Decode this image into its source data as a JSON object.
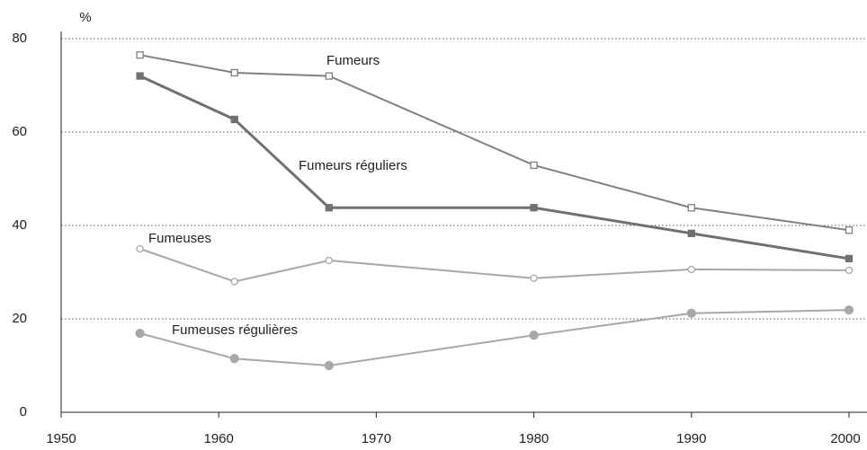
{
  "chart_data": {
    "type": "line",
    "y_unit": "%",
    "x": [
      1955,
      1961,
      1967,
      1980,
      1990,
      2000
    ],
    "series": [
      {
        "name": "Fumeurs",
        "color": "#808080",
        "marker": "square-open",
        "values": [
          76.5,
          72.7,
          72,
          52.9,
          43.8,
          39
        ]
      },
      {
        "name": "Fumeurs réguliers",
        "color": "#707070",
        "marker": "square-filled",
        "values": [
          72,
          62.7,
          43.8,
          43.8,
          38.3,
          32.9
        ]
      },
      {
        "name": "Fumeuses",
        "color": "#a8a8a8",
        "marker": "circle-open",
        "values": [
          35,
          28,
          32.5,
          28.7,
          30.6,
          30.4
        ]
      },
      {
        "name": "Fumeuses régulières",
        "color": "#a8a8a8",
        "marker": "circle-filled",
        "values": [
          16.9,
          11.5,
          10,
          16.5,
          21.2,
          21.9
        ]
      }
    ],
    "xlim": [
      1950,
      2000
    ],
    "xticks": [
      1950,
      1960,
      1970,
      1980,
      1990,
      2000
    ],
    "ylim": [
      0,
      80
    ],
    "yticks": [
      0,
      20,
      40,
      60,
      80
    ],
    "grid": true
  }
}
